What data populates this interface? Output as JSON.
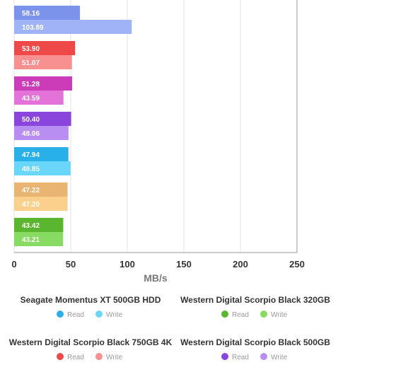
{
  "chart_data": {
    "type": "bar",
    "orientation": "horizontal",
    "xlabel": "MB/s",
    "xlim": [
      0,
      250
    ],
    "xticks": [
      0,
      50,
      100,
      150,
      200,
      250
    ],
    "grid": true,
    "groups": [
      {
        "read": 58.16,
        "write": 103.89,
        "read_color": "#7b93ea",
        "write_color": "#9fb3f6"
      },
      {
        "read": 53.9,
        "write": 51.07,
        "read_color": "#ef4848",
        "write_color": "#f89090"
      },
      {
        "read": 51.28,
        "write": 43.59,
        "read_color": "#cc3cb8",
        "write_color": "#e373d8"
      },
      {
        "read": 50.4,
        "write": 48.06,
        "read_color": "#8a45dc",
        "write_color": "#b98ef2"
      },
      {
        "read": 47.94,
        "write": 49.85,
        "read_color": "#29b0e8",
        "write_color": "#6ad6f9"
      },
      {
        "read": 47.22,
        "write": 47.2,
        "read_color": "#e8b672",
        "write_color": "#fbd08c"
      },
      {
        "read": 43.42,
        "write": 43.21,
        "read_color": "#5ab62e",
        "write_color": "#88db62"
      }
    ],
    "legend": [
      {
        "title": "Seagate Momentus XT 500GB HDD",
        "read_label": "Read",
        "write_label": "Write",
        "read_color": "#29b0e8",
        "write_color": "#6ad6f9"
      },
      {
        "title": "Western Digital Scorpio Black 320GB",
        "read_label": "Read",
        "write_label": "Write",
        "read_color": "#5ab62e",
        "write_color": "#88db62"
      },
      {
        "title": "Western Digital Scorpio Black 750GB 4K",
        "read_label": "Read",
        "write_label": "Write",
        "read_color": "#ef4848",
        "write_color": "#f89090"
      },
      {
        "title": "Western Digital Scorpio Black 500GB",
        "read_label": "Read",
        "write_label": "Write",
        "read_color": "#8a45dc",
        "write_color": "#b98ef2"
      }
    ]
  }
}
